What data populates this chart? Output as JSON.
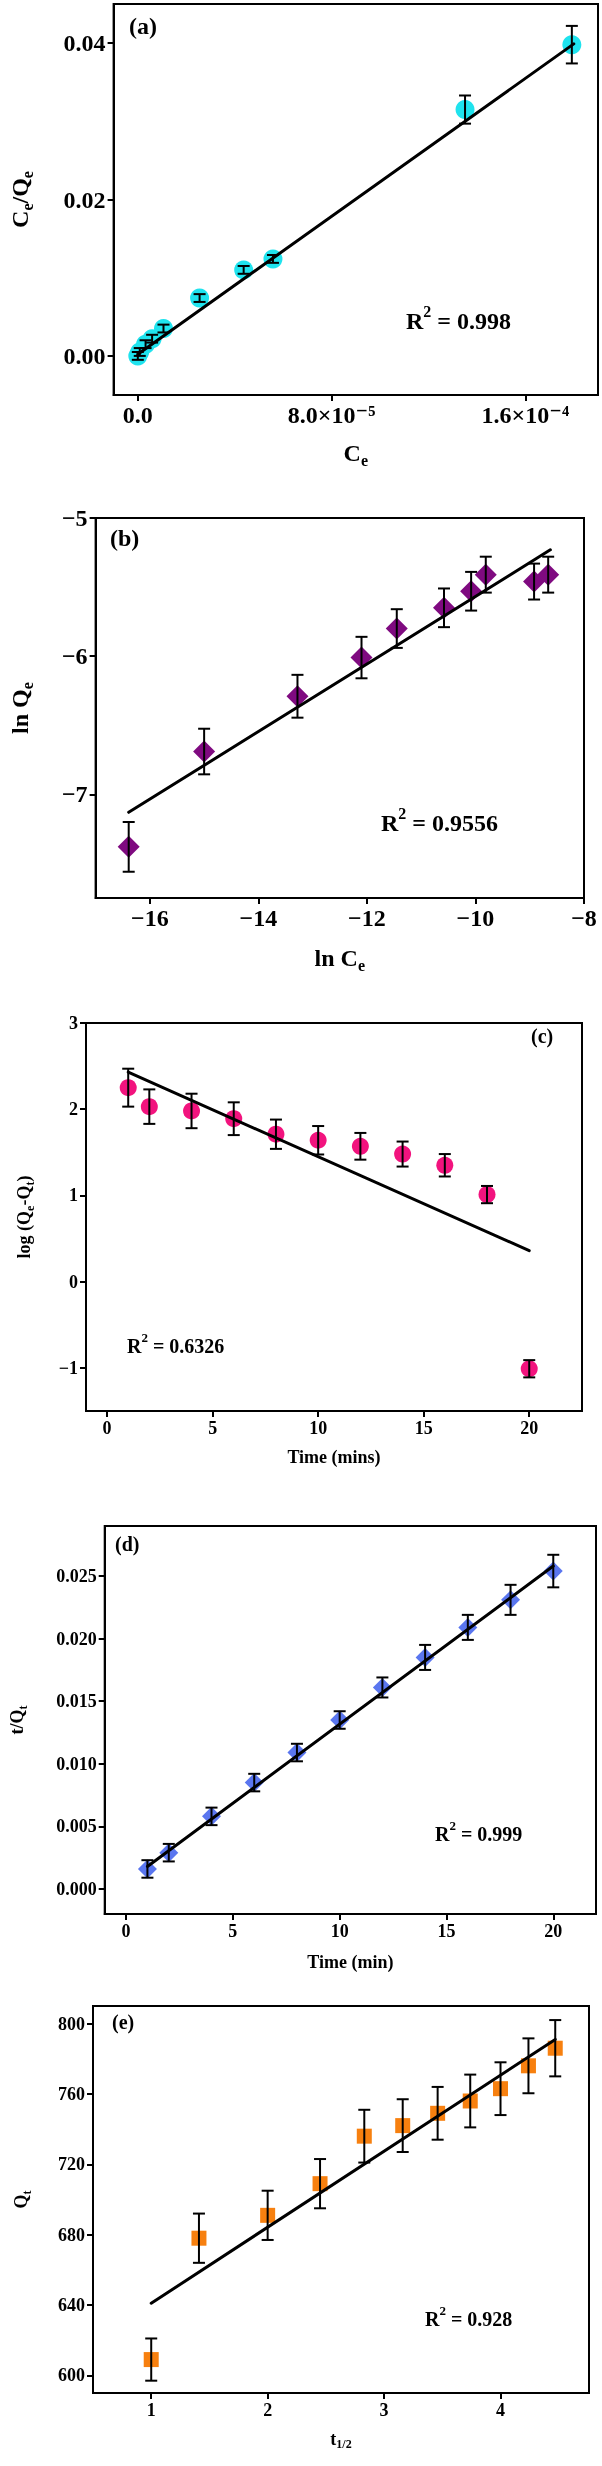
{
  "chart_data": [
    {
      "type": "scatter",
      "title": "(a)",
      "xlabel": "C$_{e}$",
      "ylabel": "C$_{e}$/Q$_{e}$",
      "annotations": [
        "R$^{2}$ = 0.998"
      ],
      "xlim": [
        -1e-05,
        0.00019
      ],
      "xticks": [
        {
          "value": 0,
          "label": "0.0"
        },
        {
          "value": 8e-05,
          "label": "8.0×10⁻⁵"
        },
        {
          "value": 0.00016,
          "label": "1.6×10⁻⁴"
        }
      ],
      "ylim": [
        -0.005,
        0.045
      ],
      "yticks": [
        {
          "value": 0,
          "label": "0.00"
        },
        {
          "value": 0.02,
          "label": "0.02"
        },
        {
          "value": 0.04,
          "label": "0.04"
        }
      ],
      "series": [
        {
          "marker": "circle",
          "color": "#1fe3ee",
          "x": [
            0,
            8e-07,
            3.2e-06,
            5.9e-06,
            1.06e-05,
            2.55e-05,
            4.37e-05,
            5.58e-05,
            0.0001351,
            0.0001792
          ],
          "values": [
            0,
            0.0005,
            0.0015,
            0.0022,
            0.0035,
            0.0074,
            0.011,
            0.0124,
            0.0315,
            0.0398
          ],
          "errors": [
            0.0005,
            0.0005,
            0.0005,
            0.0005,
            0.0005,
            0.0005,
            0.0005,
            0.0005,
            0.0018,
            0.0024
          ]
        },
        {
          "type": "line",
          "marker": "none",
          "color": "#000000",
          "x": [
            0,
            0.00018
          ],
          "values": [
            0.0002,
            0.0399
          ]
        }
      ]
    },
    {
      "type": "scatter",
      "title": "(b)",
      "xlabel": "ln C$_{e}$",
      "ylabel": "ln Q$_{e}$",
      "annotations": [
        "R$^{2}$ = 0.9556"
      ],
      "xlim": [
        -17,
        -8
      ],
      "xticks": [
        {
          "value": -16,
          "label": "−16"
        },
        {
          "value": -14,
          "label": "−14"
        },
        {
          "value": -12,
          "label": "−12"
        },
        {
          "value": -10,
          "label": "−10"
        },
        {
          "value": -8,
          "label": "−8"
        }
      ],
      "ylim": [
        -7.75,
        -5
      ],
      "yticks": [
        {
          "value": -7,
          "label": "−7"
        },
        {
          "value": -6,
          "label": "−6"
        },
        {
          "value": -5,
          "label": "−5"
        }
      ],
      "series": [
        {
          "marker": "diamond",
          "color": "#7f0a80",
          "x": [
            -16.39,
            -15.0,
            -13.28,
            -12.1,
            -11.45,
            -10.58,
            -10.08,
            -9.81,
            -8.92,
            -8.66
          ],
          "values": [
            -7.38,
            -6.69,
            -6.29,
            -6.01,
            -5.8,
            -5.65,
            -5.53,
            -5.41,
            -5.46,
            -5.41
          ],
          "errors": [
            0.18,
            0.165,
            0.155,
            0.15,
            0.14,
            0.14,
            0.14,
            0.13,
            0.13,
            0.13
          ]
        },
        {
          "type": "line",
          "marker": "none",
          "color": "#000000",
          "x": [
            -16.39,
            -8.62
          ],
          "values": [
            -7.13,
            -5.23
          ]
        }
      ]
    },
    {
      "type": "scatter",
      "title": "(c)",
      "xlabel": "Time (mins)",
      "ylabel": "log (Q$_{e}$-Q$_{t}$)",
      "annotations": [
        "R$^{2}$ = 0.6326"
      ],
      "xlim": [
        -1,
        22.5
      ],
      "xticks": [
        0,
        5,
        10,
        15,
        20
      ],
      "ylim": [
        -1.5,
        3
      ],
      "yticks": [
        {
          "value": -1,
          "label": "−1"
        },
        0,
        1,
        2,
        3
      ],
      "series": [
        {
          "marker": "circle",
          "color": "#f2137e",
          "x": [
            1,
            2,
            4,
            6,
            8,
            10,
            12,
            14,
            16,
            18,
            20
          ],
          "values": [
            2.25,
            2.03,
            1.98,
            1.89,
            1.71,
            1.64,
            1.57,
            1.48,
            1.35,
            1.01,
            -1.01
          ],
          "errors": [
            0.22,
            0.2,
            0.2,
            0.19,
            0.17,
            0.165,
            0.155,
            0.145,
            0.13,
            0.1,
            0.1
          ]
        },
        {
          "type": "line",
          "marker": "none",
          "color": "#000000",
          "x": [
            1,
            20
          ],
          "values": [
            2.43,
            0.36
          ]
        }
      ]
    },
    {
      "type": "scatter",
      "title": "(d)",
      "xlabel": "Time (min)",
      "ylabel": "t/Q$_{t}$",
      "annotations": [
        "R$^{2}$ = 0.999"
      ],
      "xlim": [
        -1,
        22
      ],
      "xticks": [
        0,
        5,
        10,
        15,
        20
      ],
      "ylim": [
        -0.002,
        0.029
      ],
      "yticks": [
        {
          "value": 0,
          "label": "0.000"
        },
        0.005,
        {
          "value": 0.01,
          "label": "0.010"
        },
        0.015,
        {
          "value": 0.02,
          "label": "0.020"
        },
        0.025
      ],
      "series": [
        {
          "marker": "diamond",
          "color": "#5a76ef",
          "x": [
            1,
            2,
            4,
            6,
            8,
            10,
            12,
            14,
            16,
            18,
            20
          ],
          "values": [
            0.0016,
            0.0029,
            0.0058,
            0.0085,
            0.0109,
            0.0135,
            0.0161,
            0.0185,
            0.0209,
            0.0231,
            0.0254
          ],
          "errors": [
            0.0007,
            0.0007,
            0.0007,
            0.0007,
            0.0007,
            0.0007,
            0.0008,
            0.001,
            0.001,
            0.0012,
            0.0013
          ]
        },
        {
          "type": "line",
          "marker": "none",
          "color": "#000000",
          "x": [
            1,
            20
          ],
          "values": [
            0.0018,
            0.0258
          ]
        }
      ]
    },
    {
      "type": "scatter",
      "title": "(e)",
      "xlabel": "t$_{1/2}$",
      "ylabel": "Q$_{t}$",
      "annotations": [
        "R$^{2}$ = 0.928"
      ],
      "xlim": [
        0.5,
        4.76
      ],
      "xticks": [
        1,
        2,
        3,
        4
      ],
      "ylim": [
        590,
        810
      ],
      "yticks": [
        600,
        640,
        680,
        720,
        760,
        800
      ],
      "series": [
        {
          "marker": "square",
          "color": "#f7800f",
          "x": [
            1,
            1.41,
            2,
            2.45,
            2.83,
            3.16,
            3.46,
            3.74,
            4,
            4.24,
            4.47
          ],
          "values": [
            609,
            678,
            691,
            709,
            736,
            742,
            749,
            756,
            763,
            776,
            786
          ],
          "errors": [
            12,
            14,
            14,
            14,
            15,
            15,
            15,
            15,
            15,
            15.6,
            16
          ]
        },
        {
          "type": "line",
          "marker": "none",
          "color": "#000000",
          "x": [
            1,
            4.47
          ],
          "values": [
            641,
            791
          ]
        }
      ]
    }
  ]
}
